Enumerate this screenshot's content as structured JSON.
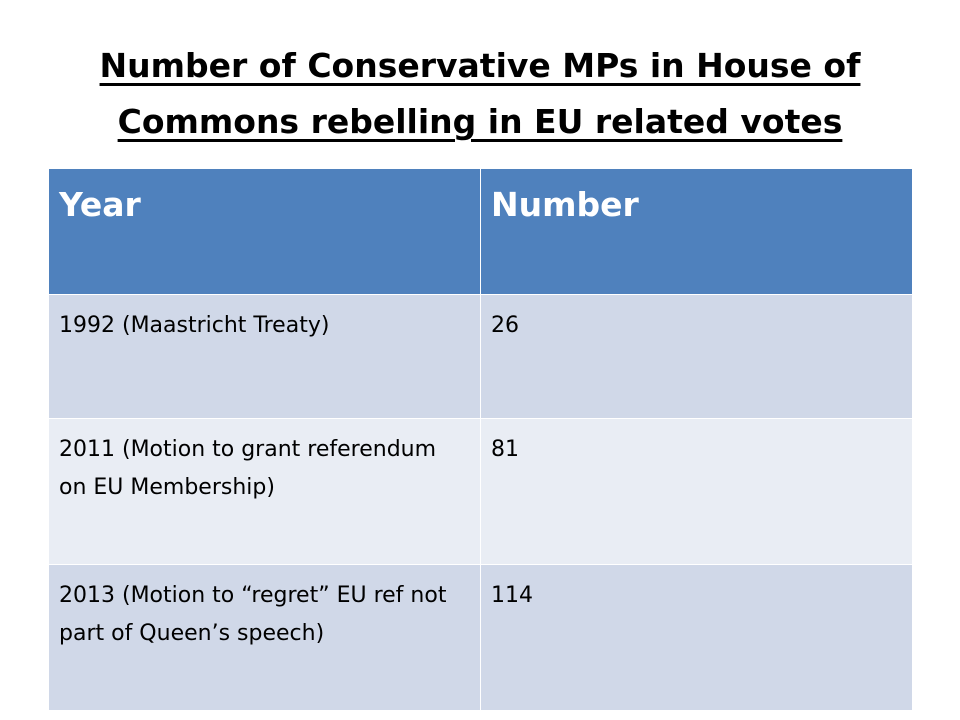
{
  "title": {
    "line1": "Number of Conservative MPs in House of",
    "line2": "Commons rebelling in EU related votes"
  },
  "table": {
    "headers": [
      "Year",
      "Number"
    ],
    "rows": [
      {
        "year": "1992 (Maastricht Treaty)",
        "number": "26"
      },
      {
        "year": "2011 (Motion to grant referendum on EU Membership)",
        "number": "81"
      },
      {
        "year": "2013 (Motion to “regret” EU ref not part of Queen’s speech)",
        "number": "114"
      }
    ]
  },
  "colors": {
    "header_bg": "#4f81bd",
    "row_odd_bg": "#d0d8e8",
    "row_even_bg": "#e9edf4"
  }
}
